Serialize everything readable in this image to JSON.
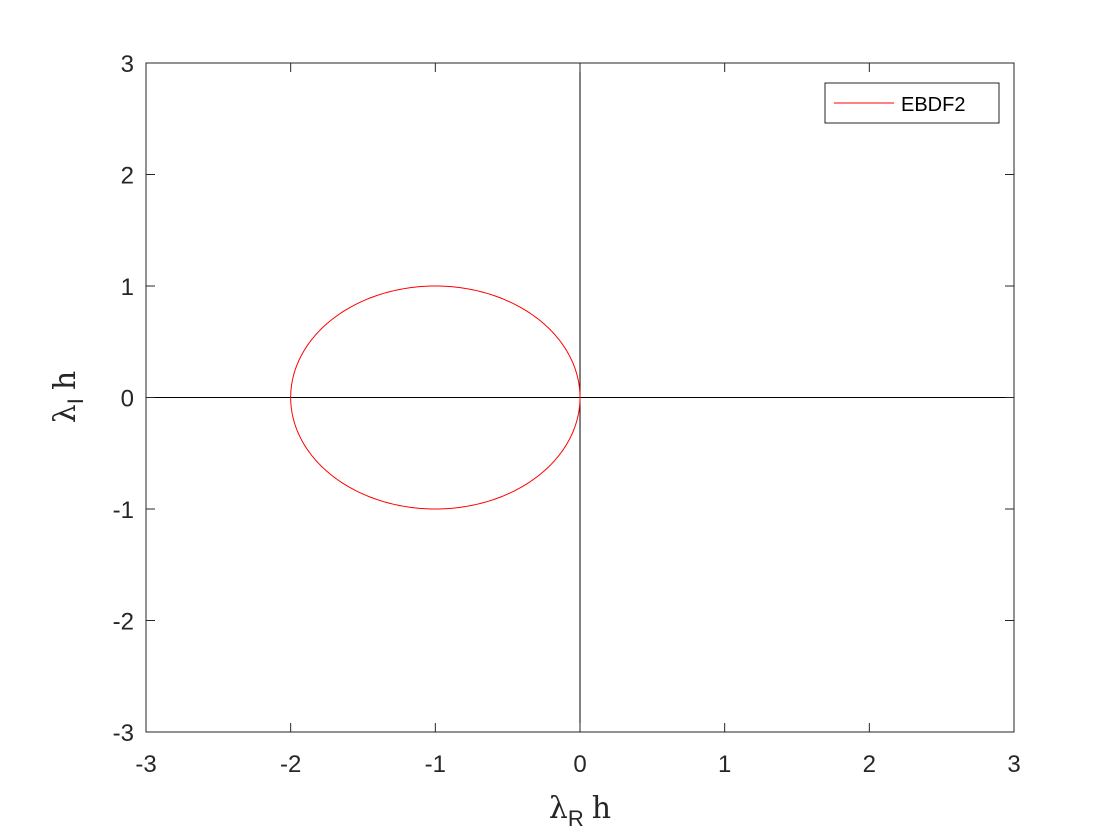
{
  "chart_data": {
    "type": "line",
    "xlim": [
      -3,
      3
    ],
    "ylim": [
      -3,
      3
    ],
    "x_ticks": [
      -3,
      -2,
      -1,
      0,
      1,
      2,
      3
    ],
    "y_ticks": [
      -3,
      -2,
      -1,
      0,
      1,
      2,
      3
    ],
    "x_tick_labels": [
      "-3",
      "-2",
      "-1",
      "0",
      "1",
      "2",
      "3"
    ],
    "y_tick_labels": [
      "-3",
      "-2",
      "-1",
      "0",
      "1",
      "2",
      "3"
    ],
    "xlabel": {
      "symbol": "λ",
      "subscript": "R",
      "suffix": "h"
    },
    "ylabel": {
      "symbol": "λ",
      "subscript": "I",
      "suffix": "h"
    },
    "grid": false,
    "legend_position": "top-right",
    "reference_lines": [
      {
        "axis": "x",
        "value": 0,
        "color": "#000000"
      },
      {
        "axis": "y",
        "value": 0,
        "color": "#000000"
      }
    ],
    "series": [
      {
        "name": "EBDF2",
        "color": "#ff0000",
        "shape": "circle",
        "center": [
          -1,
          0
        ],
        "radius": 1
      }
    ]
  }
}
